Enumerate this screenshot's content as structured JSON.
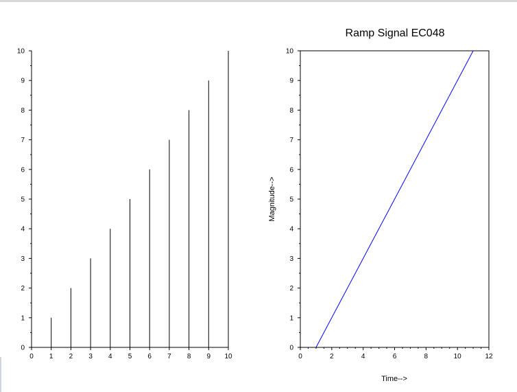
{
  "chart_data": [
    {
      "type": "bar",
      "title": "",
      "xlabel": "",
      "ylabel": "",
      "x": [
        0,
        1,
        2,
        3,
        4,
        5,
        6,
        7,
        8,
        9,
        10
      ],
      "values": [
        0,
        1,
        2,
        3,
        4,
        5,
        6,
        7,
        8,
        9,
        10
      ],
      "xlim": [
        0,
        10
      ],
      "ylim": [
        0,
        10
      ],
      "xticks": [
        "0",
        "1",
        "2",
        "3",
        "4",
        "5",
        "6",
        "7",
        "8",
        "9",
        "10"
      ],
      "yticks": [
        "0",
        "1",
        "2",
        "3",
        "4",
        "5",
        "6",
        "7",
        "8",
        "9",
        "10"
      ],
      "color": "#000000",
      "grid": false
    },
    {
      "type": "line",
      "title": "Ramp Signal EC048",
      "xlabel": "Time-->",
      "ylabel": "Magnitude-->",
      "x": [
        1,
        11
      ],
      "y": [
        0,
        10
      ],
      "xlim": [
        0,
        12
      ],
      "ylim": [
        0,
        10
      ],
      "xticks": [
        "0",
        "2",
        "4",
        "6",
        "8",
        "10",
        "12"
      ],
      "yticks": [
        "0",
        "1",
        "2",
        "3",
        "4",
        "5",
        "6",
        "7",
        "8",
        "9",
        "10"
      ],
      "color": "#0000ff",
      "grid": false
    }
  ]
}
